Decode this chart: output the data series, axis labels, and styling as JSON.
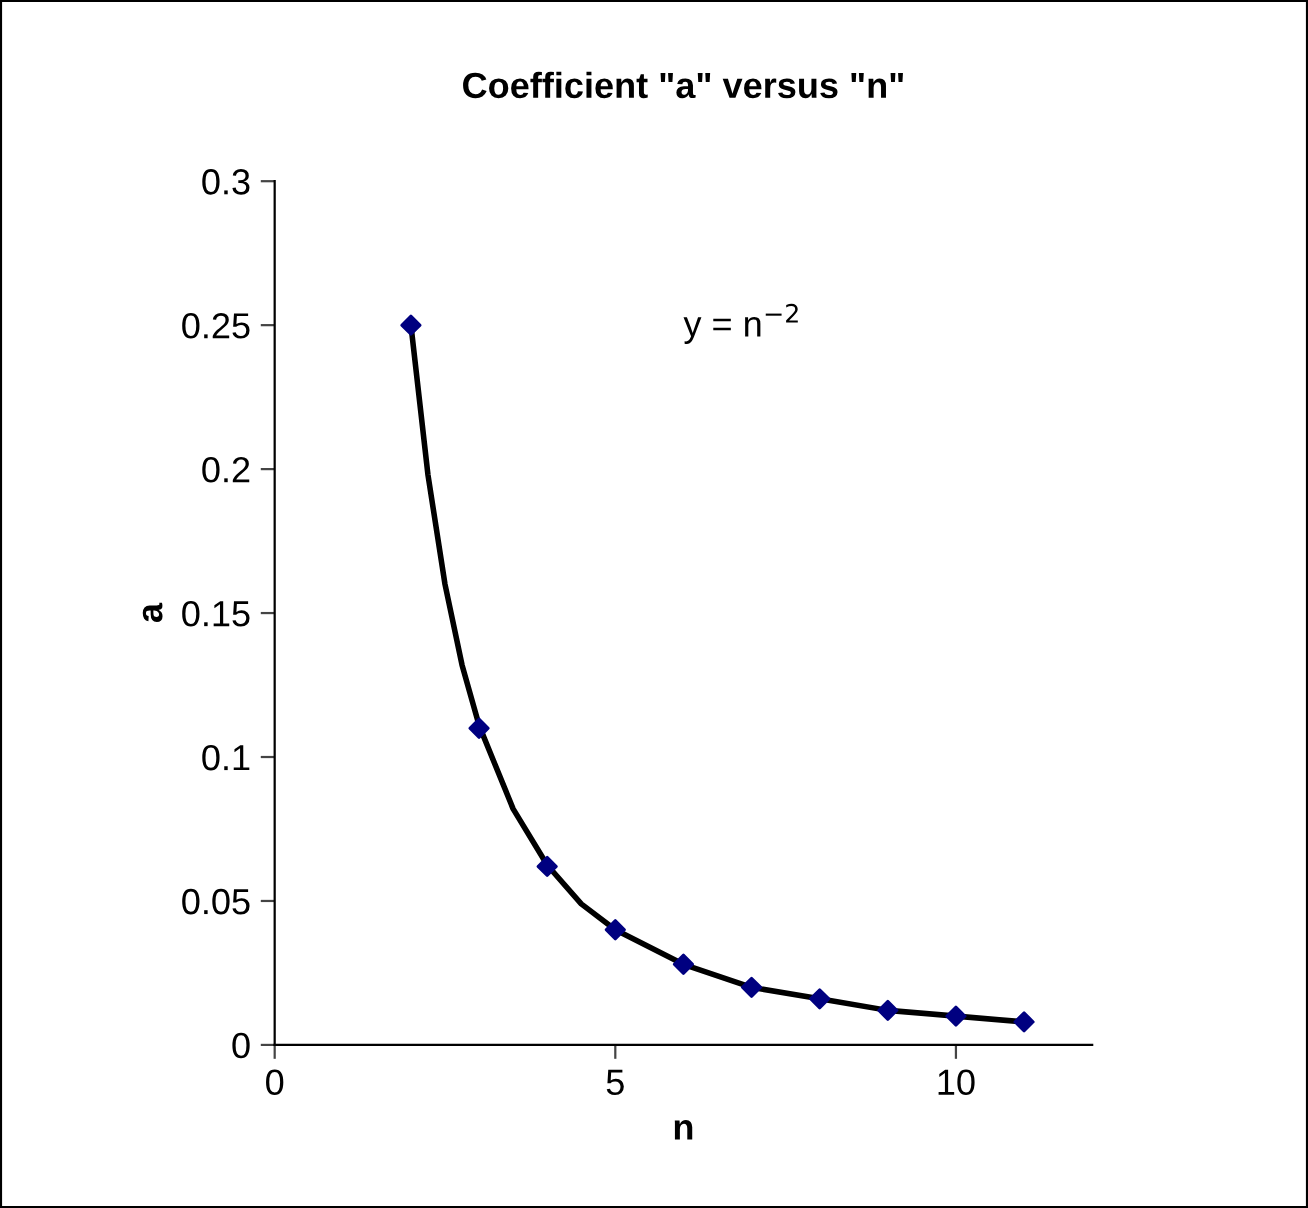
{
  "chart_data": {
    "type": "scatter",
    "title": "Coefficient \"a\" versus \"n\"",
    "xlabel": "n",
    "ylabel": "a",
    "x": [
      2,
      3,
      4,
      5,
      6,
      7,
      8,
      9,
      10,
      11
    ],
    "series": [
      {
        "color": "#000080",
        "marker": "diamond",
        "values": [
          0.25,
          0.11,
          0.062,
          0.04,
          0.028,
          0.02,
          0.016,
          0.012,
          0.01,
          0.008
        ]
      },
      {
        "type": "line",
        "color": "#000000",
        "marker": "none",
        "x": [
          2,
          2.25,
          2.5,
          2.75,
          3,
          3.5,
          4,
          4.5,
          5,
          6,
          7,
          8,
          9,
          10,
          11
        ],
        "values": [
          0.25,
          0.198,
          0.16,
          0.132,
          0.111,
          0.082,
          0.0625,
          0.049,
          0.04,
          0.028,
          0.02,
          0.016,
          0.012,
          0.01,
          0.008
        ]
      }
    ],
    "annotations": [
      "y = n$^{−2}$"
    ],
    "xlim": [
      0,
      12
    ],
    "xticks": [
      0,
      5,
      10
    ],
    "ylim": [
      0,
      0.3
    ],
    "yticks": [
      0,
      0.05,
      0.1,
      0.15,
      0.2,
      0.25,
      0.3
    ],
    "grid": false,
    "legend": false
  }
}
